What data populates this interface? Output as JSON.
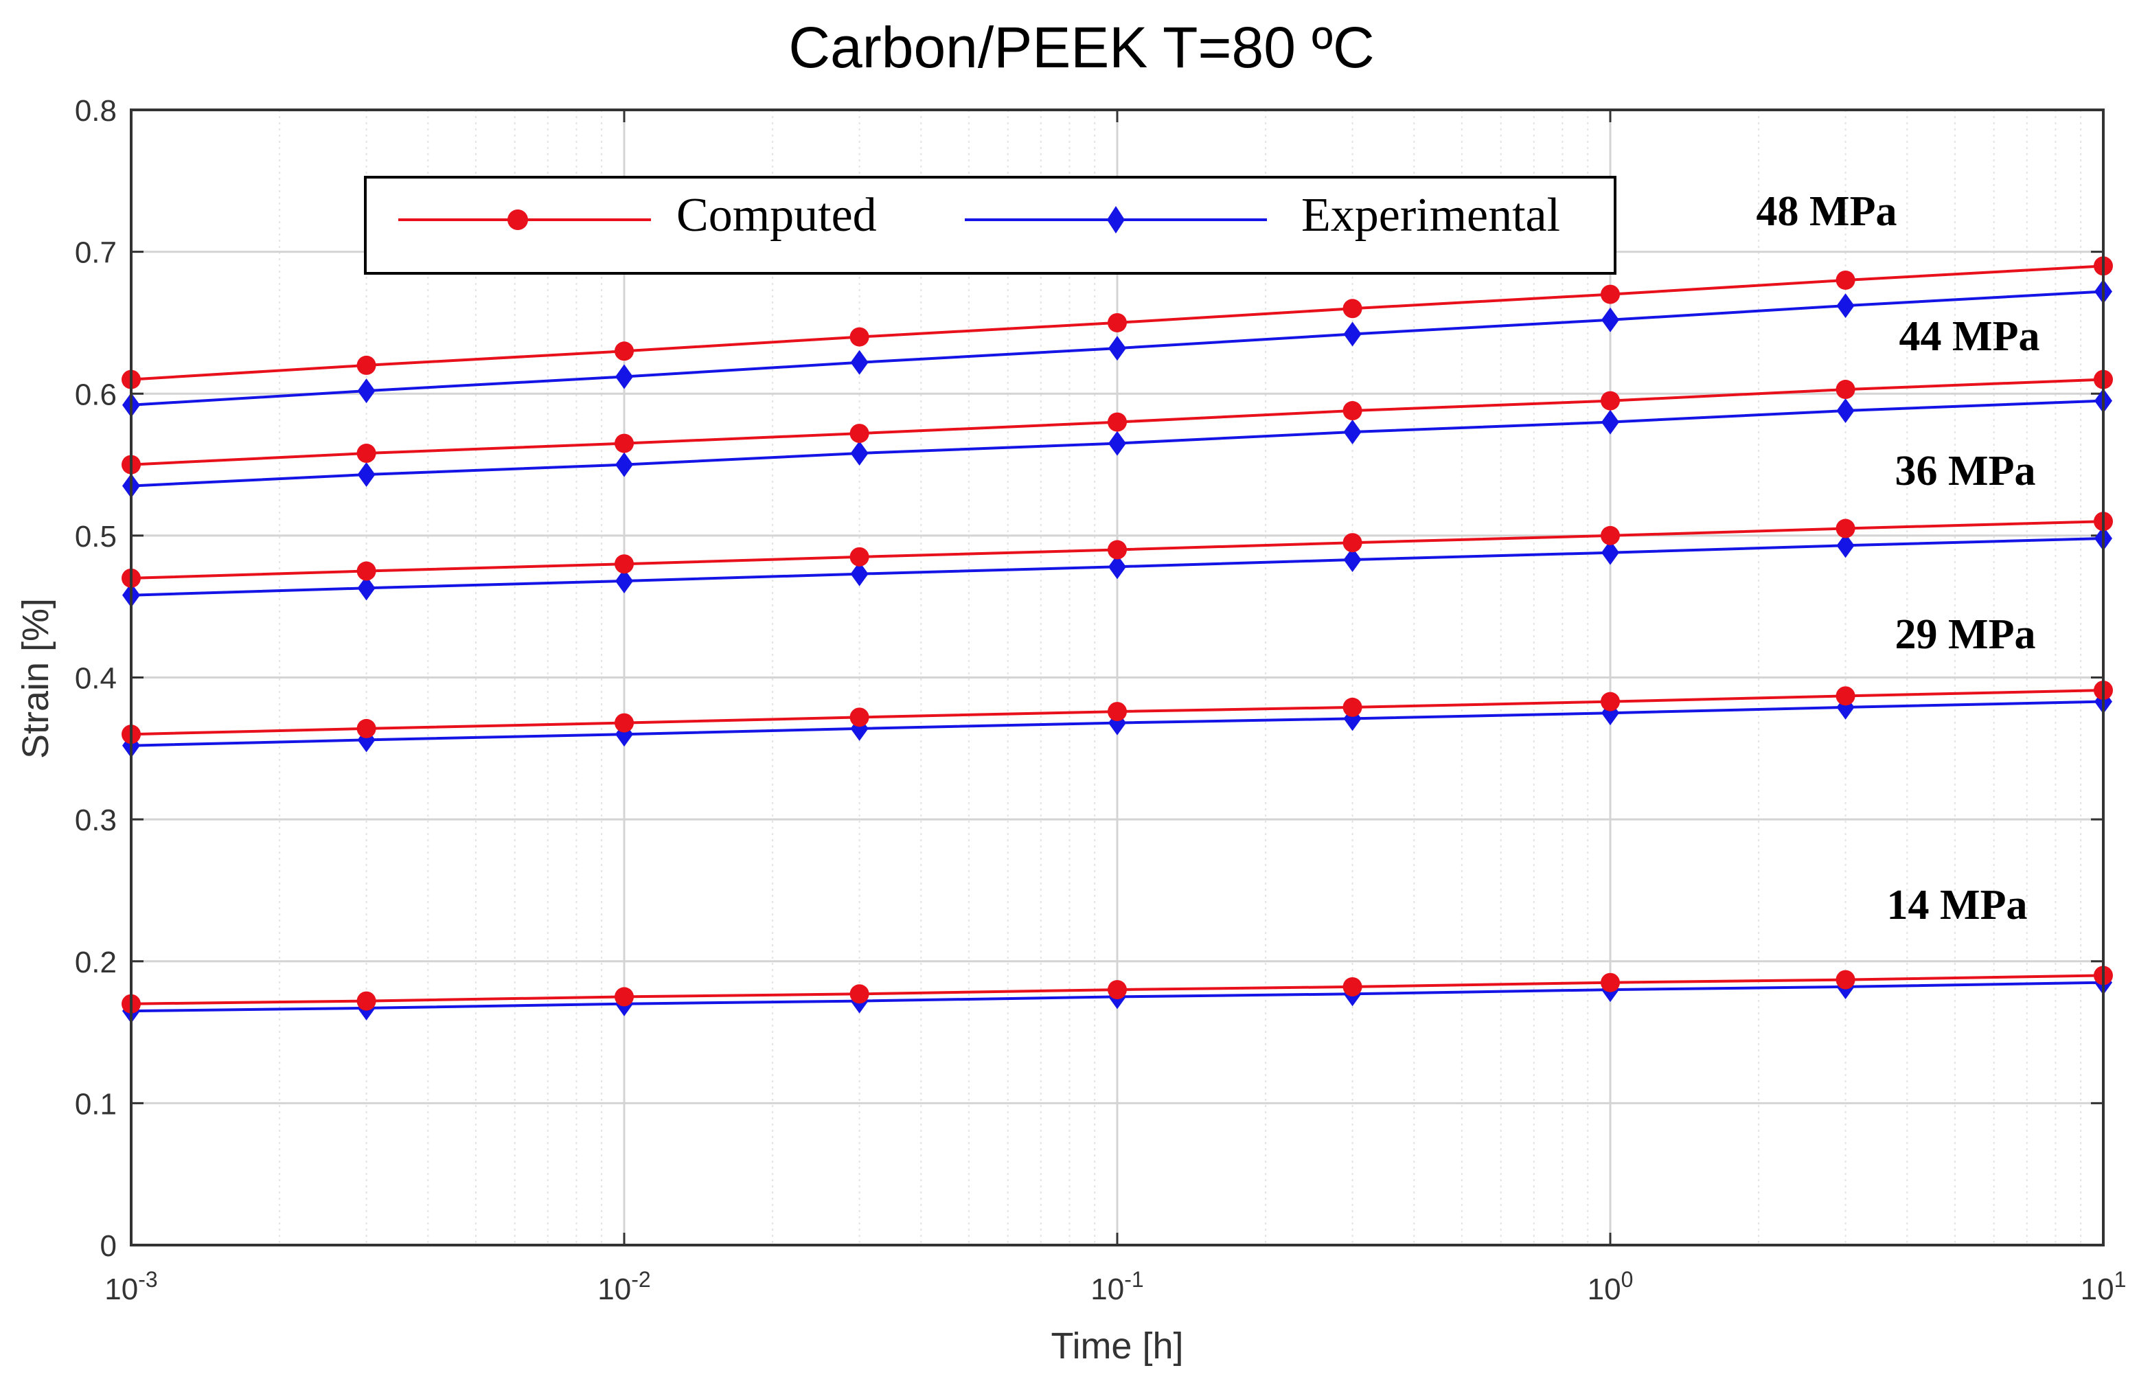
{
  "chart_data": {
    "type": "line",
    "title": "Carbon/PEEK  T=80 ºC",
    "xlabel": "Time [h]",
    "ylabel": "Strain [%]",
    "xscale": "log",
    "xlim": [
      0.001,
      10
    ],
    "ylim": [
      0,
      0.8
    ],
    "grid": true,
    "x": [
      0.001,
      0.003,
      0.01,
      0.03,
      0.1,
      0.3,
      1,
      3,
      10
    ],
    "yticks": [
      "0",
      "0.1",
      "0.2",
      "0.3",
      "0.4",
      "0.5",
      "0.6",
      "0.7",
      "0.8"
    ],
    "xticks": [
      {
        "base": "10",
        "exp": "-3"
      },
      {
        "base": "10",
        "exp": "-2"
      },
      {
        "base": "10",
        "exp": "-1"
      },
      {
        "base": "10",
        "exp": "0"
      },
      {
        "base": "10",
        "exp": "1"
      }
    ],
    "legend": {
      "placement": "top",
      "entries": [
        {
          "name": "Computed",
          "color": "#e8101a",
          "marker": "circle"
        },
        {
          "name": "Experimental",
          "color": "#1414e6",
          "marker": "diamond"
        }
      ]
    },
    "groups": [
      {
        "label": "48 MPa",
        "computed": [
          0.61,
          0.62,
          0.63,
          0.64,
          0.65,
          0.66,
          0.67,
          0.68,
          0.69
        ],
        "experimental": [
          0.592,
          0.602,
          0.612,
          0.622,
          0.632,
          0.642,
          0.652,
          0.662,
          0.672
        ]
      },
      {
        "label": "44 MPa",
        "computed": [
          0.55,
          0.558,
          0.565,
          0.572,
          0.58,
          0.588,
          0.595,
          0.603,
          0.61
        ],
        "experimental": [
          0.535,
          0.543,
          0.55,
          0.558,
          0.565,
          0.573,
          0.58,
          0.588,
          0.595
        ]
      },
      {
        "label": "36 MPa",
        "computed": [
          0.47,
          0.475,
          0.48,
          0.485,
          0.49,
          0.495,
          0.5,
          0.505,
          0.51
        ],
        "experimental": [
          0.458,
          0.463,
          0.468,
          0.473,
          0.478,
          0.483,
          0.488,
          0.493,
          0.498
        ]
      },
      {
        "label": "29 MPa",
        "computed": [
          0.36,
          0.364,
          0.368,
          0.372,
          0.376,
          0.379,
          0.383,
          0.387,
          0.391
        ],
        "experimental": [
          0.352,
          0.356,
          0.36,
          0.364,
          0.368,
          0.371,
          0.375,
          0.379,
          0.383
        ]
      },
      {
        "label": "14 MPa",
        "computed": [
          0.17,
          0.172,
          0.175,
          0.177,
          0.18,
          0.182,
          0.185,
          0.187,
          0.19
        ],
        "experimental": [
          0.165,
          0.167,
          0.17,
          0.172,
          0.175,
          0.177,
          0.18,
          0.182,
          0.185
        ]
      }
    ]
  }
}
